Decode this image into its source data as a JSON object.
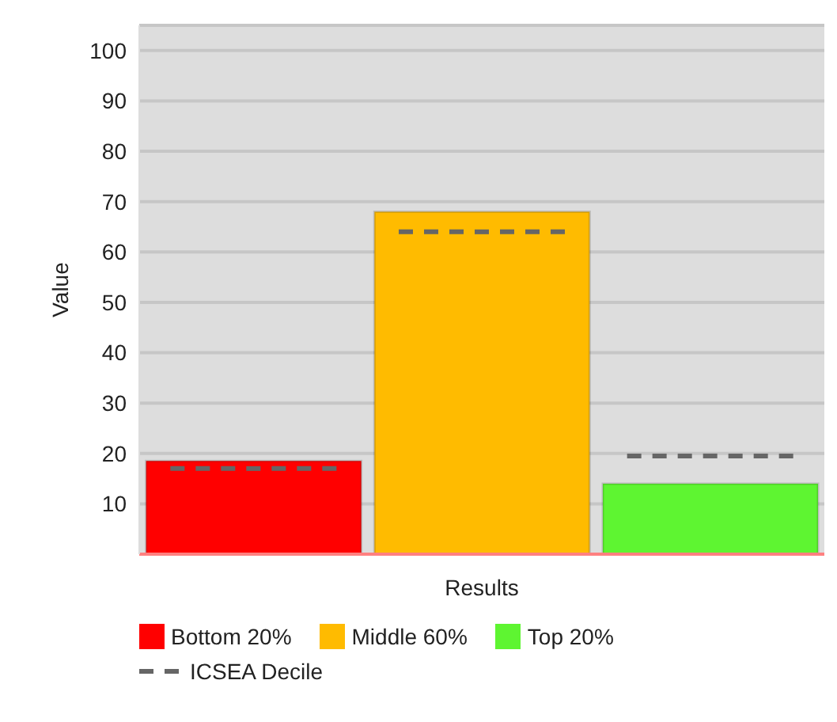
{
  "chart_data": {
    "type": "bar",
    "ylabel": "Value",
    "xlabel": "Results",
    "categories": [
      null,
      null,
      null
    ],
    "stacked": true,
    "series": [
      {
        "name": "Bottom 20%",
        "color": "#ff0000",
        "values": [
          18.5,
          null,
          null
        ]
      },
      {
        "name": "Middle 60%",
        "color": "#ffbb00",
        "values": [
          null,
          68,
          null
        ]
      },
      {
        "name": "Top 20%",
        "color": "#5ef531",
        "values": [
          null,
          null,
          14
        ]
      },
      {
        "name": "ICSEA Decile",
        "type": "scatter",
        "color": "#666666",
        "line_style": "dashed",
        "values": [
          17,
          64,
          19.5
        ]
      }
    ],
    "ylim": [
      0,
      105
    ],
    "yticks": [
      10,
      20,
      30,
      40,
      50,
      60,
      70,
      80,
      90,
      100
    ],
    "grid": "y",
    "legend": "bottom"
  }
}
